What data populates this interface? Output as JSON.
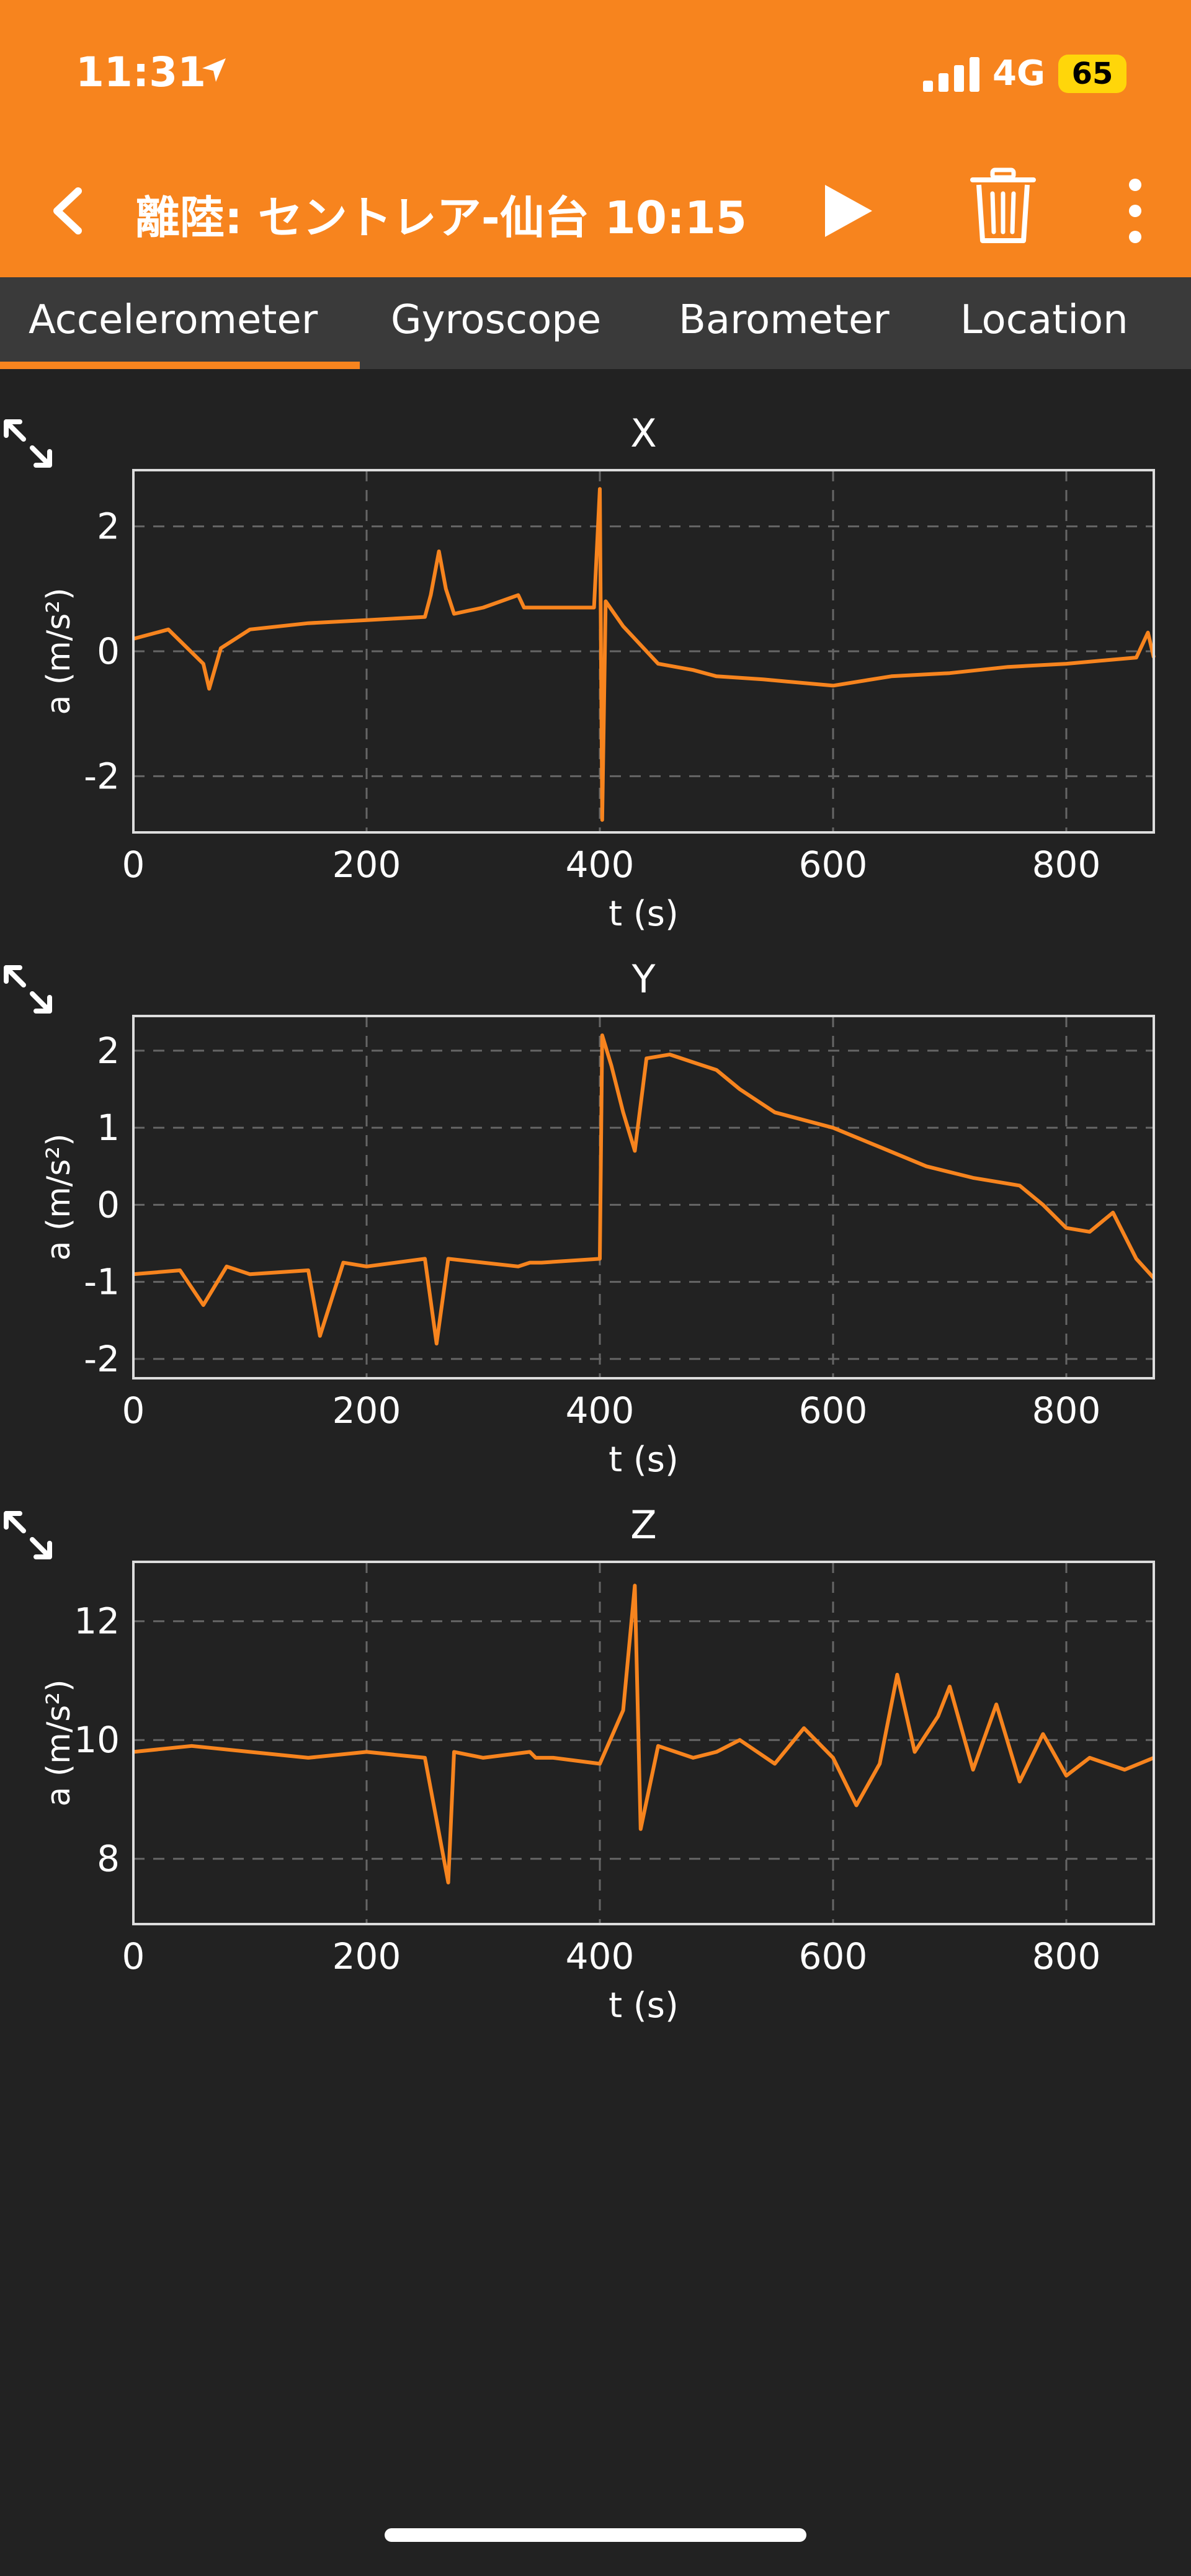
{
  "status_bar": {
    "time": "11:31",
    "network": "4G",
    "battery": "65",
    "icons": [
      "location-arrow-icon",
      "signal-bars-icon"
    ]
  },
  "app_bar": {
    "title": "離陸: セントレア-仙台 10:15",
    "icons": [
      "back-chevron-icon",
      "play-icon",
      "trash-icon",
      "more-vertical-icon"
    ]
  },
  "tabs": [
    {
      "label": "Accelerometer",
      "selected": true
    },
    {
      "label": "Gyroscope",
      "selected": false
    },
    {
      "label": "Barometer",
      "selected": false
    },
    {
      "label": "Location",
      "selected": false
    }
  ],
  "theme": {
    "accent": "#F7841E",
    "background": "#222222",
    "tab_bar": "#3A3A3A",
    "plot_line": "#F7841E",
    "grid": "#666666"
  },
  "chart_data": [
    {
      "type": "line",
      "title": "X",
      "xlabel": "t (s)",
      "ylabel": "a (m/s²)",
      "xlim": [
        0,
        875
      ],
      "ylim": [
        -2.9,
        2.9
      ],
      "xticks": [
        0,
        200,
        400,
        600,
        800
      ],
      "yticks": [
        -2,
        0,
        2
      ],
      "grid": true,
      "series": [
        {
          "x": [
            0,
            30,
            60,
            65,
            75,
            100,
            150,
            200,
            250,
            255,
            262,
            268,
            275,
            300,
            330,
            335,
            360,
            395,
            400,
            402,
            405,
            420,
            450,
            480,
            500,
            540,
            600,
            650,
            700,
            750,
            800,
            860,
            870,
            875
          ],
          "y": [
            0.2,
            0.35,
            -0.2,
            -0.6,
            0.05,
            0.35,
            0.45,
            0.5,
            0.55,
            0.9,
            1.6,
            1.0,
            0.6,
            0.7,
            0.9,
            0.7,
            0.7,
            0.7,
            2.6,
            -2.7,
            0.8,
            0.4,
            -0.2,
            -0.3,
            -0.4,
            -0.45,
            -0.55,
            -0.4,
            -0.35,
            -0.25,
            -0.2,
            -0.1,
            0.3,
            -0.1
          ]
        }
      ]
    },
    {
      "type": "line",
      "title": "Y",
      "xlabel": "t (s)",
      "ylabel": "a (m/s²)",
      "xlim": [
        0,
        875
      ],
      "ylim": [
        -2.25,
        2.45
      ],
      "xticks": [
        0,
        200,
        400,
        600,
        800
      ],
      "yticks": [
        -2,
        -1,
        0,
        1,
        2
      ],
      "grid": true,
      "series": [
        {
          "x": [
            0,
            40,
            60,
            80,
            100,
            150,
            160,
            180,
            200,
            250,
            260,
            270,
            300,
            330,
            340,
            350,
            400,
            402,
            410,
            420,
            430,
            440,
            460,
            480,
            500,
            520,
            550,
            600,
            640,
            680,
            720,
            760,
            780,
            800,
            820,
            840,
            860,
            875
          ],
          "y": [
            -0.9,
            -0.85,
            -1.3,
            -0.8,
            -0.9,
            -0.85,
            -1.7,
            -0.75,
            -0.8,
            -0.7,
            -1.8,
            -0.7,
            -0.75,
            -0.8,
            -0.75,
            -0.75,
            -0.7,
            2.2,
            1.8,
            1.2,
            0.7,
            1.9,
            1.95,
            1.85,
            1.75,
            1.5,
            1.2,
            1.0,
            0.75,
            0.5,
            0.35,
            0.25,
            0.0,
            -0.3,
            -0.35,
            -0.1,
            -0.7,
            -0.95
          ]
        }
      ]
    },
    {
      "type": "line",
      "title": "Z",
      "xlabel": "t (s)",
      "ylabel": "a (m/s²)",
      "xlim": [
        0,
        875
      ],
      "ylim": [
        6.9,
        13.0
      ],
      "xticks": [
        0,
        200,
        400,
        600,
        800
      ],
      "yticks": [
        8,
        10,
        12
      ],
      "grid": true,
      "series": [
        {
          "x": [
            0,
            50,
            100,
            150,
            200,
            250,
            270,
            275,
            300,
            340,
            345,
            360,
            400,
            420,
            430,
            435,
            450,
            480,
            500,
            520,
            550,
            575,
            600,
            620,
            640,
            655,
            670,
            690,
            700,
            720,
            740,
            760,
            780,
            800,
            820,
            850,
            875
          ],
          "y": [
            9.8,
            9.9,
            9.8,
            9.7,
            9.8,
            9.7,
            7.6,
            9.8,
            9.7,
            9.8,
            9.7,
            9.7,
            9.6,
            10.5,
            12.6,
            8.5,
            9.9,
            9.7,
            9.8,
            10.0,
            9.6,
            10.2,
            9.7,
            8.9,
            9.6,
            11.1,
            9.8,
            10.4,
            10.9,
            9.5,
            10.6,
            9.3,
            10.1,
            9.4,
            9.7,
            9.5,
            9.7
          ]
        }
      ]
    }
  ]
}
